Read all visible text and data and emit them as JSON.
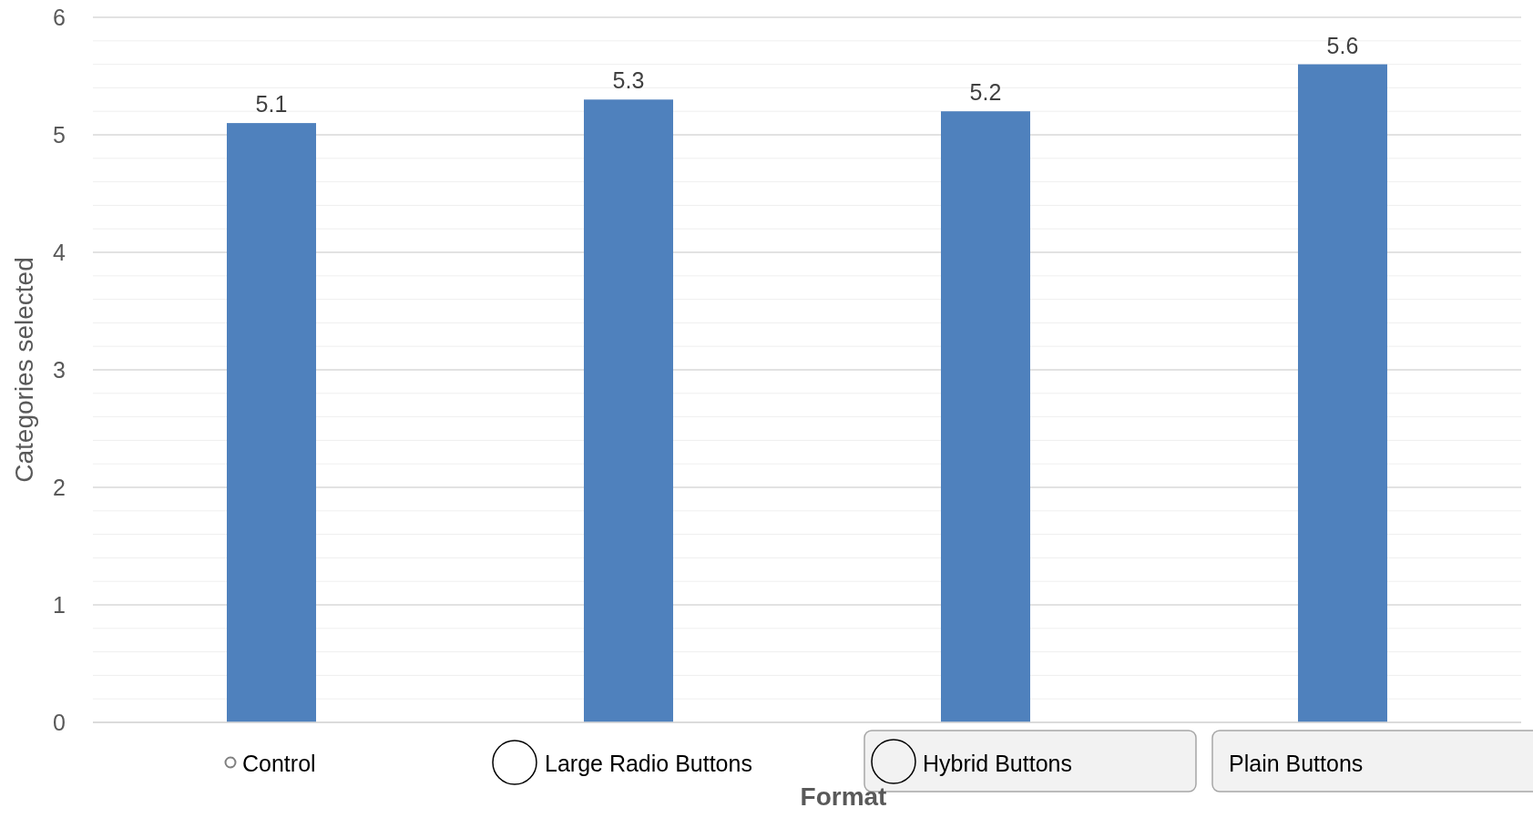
{
  "chart_data": {
    "type": "bar",
    "xlabel": "Format",
    "ylabel": "Categories selected",
    "categories": [
      "Control",
      "Large Radio Buttons",
      "Hybrid Buttons",
      "Plain Buttons"
    ],
    "values": [
      5.1,
      5.3,
      5.2,
      5.6
    ],
    "color": "#4f81bd",
    "data_labels": true,
    "ylim": [
      0,
      6
    ],
    "yticks": [
      0,
      {
        "value": 0.2,
        "label": null
      },
      {
        "value": 0.4,
        "label": null
      },
      {
        "value": 0.6,
        "label": null
      },
      {
        "value": 0.8,
        "label": null
      },
      1,
      {
        "value": 1.2,
        "label": null
      },
      {
        "value": 1.4,
        "label": null
      },
      {
        "value": 1.6,
        "label": null
      },
      {
        "value": 1.8,
        "label": null
      },
      2,
      {
        "value": 2.2,
        "label": null
      },
      {
        "value": 2.4,
        "label": null
      },
      {
        "value": 2.6,
        "label": null
      },
      {
        "value": 2.8,
        "label": null
      },
      3,
      {
        "value": 3.2,
        "label": null
      },
      {
        "value": 3.4,
        "label": null
      },
      {
        "value": 3.6,
        "label": null
      },
      {
        "value": 3.8,
        "label": null
      },
      4,
      {
        "value": 4.2,
        "label": null
      },
      {
        "value": 4.4,
        "label": null
      },
      {
        "value": 4.6,
        "label": null
      },
      {
        "value": 4.8,
        "label": null
      },
      5,
      {
        "value": 5.2,
        "label": null
      },
      {
        "value": 5.4,
        "label": null
      },
      {
        "value": 5.6,
        "label": null
      },
      {
        "value": 5.8,
        "label": null
      },
      6
    ],
    "grid": true
  }
}
